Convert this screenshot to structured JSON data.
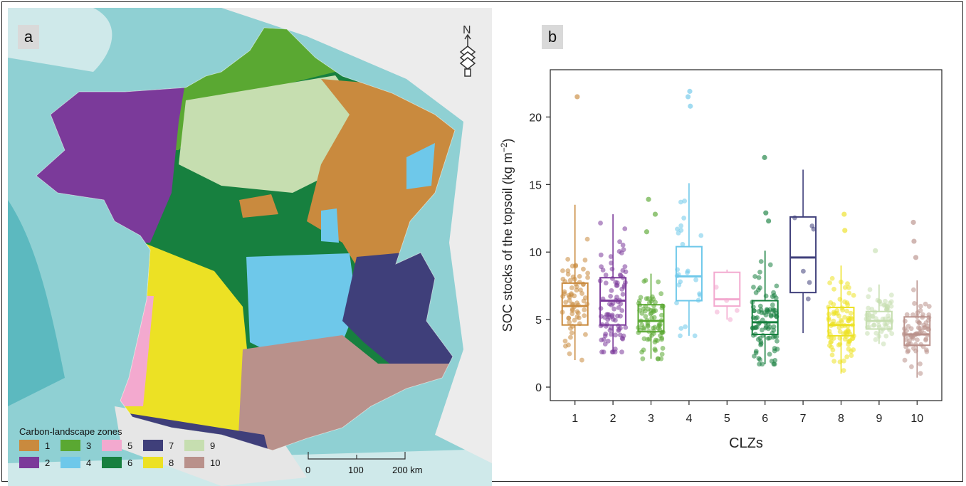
{
  "panel_a": {
    "tag": "a",
    "legend_title": "Carbon-landscape zones",
    "zones": [
      {
        "id": "1",
        "color": "#c98a3e"
      },
      {
        "id": "2",
        "color": "#7b3a9a"
      },
      {
        "id": "3",
        "color": "#5aa832"
      },
      {
        "id": "4",
        "color": "#6ec8ea"
      },
      {
        "id": "5",
        "color": "#f3a9cf"
      },
      {
        "id": "6",
        "color": "#17803f"
      },
      {
        "id": "7",
        "color": "#3f3f7a"
      },
      {
        "id": "8",
        "color": "#ece124"
      },
      {
        "id": "9",
        "color": "#c6deb0"
      },
      {
        "id": "10",
        "color": "#b9918b"
      }
    ],
    "scale_labels": [
      "0",
      "100",
      "200 km"
    ],
    "north_label": "N"
  },
  "panel_b": {
    "tag": "b"
  },
  "chart_data": {
    "type": "box",
    "xlabel": "CLZs",
    "ylabel": "SOC stocks of the topsoil (kg m",
    "ylabel_sup": "−2",
    "ylabel_close": ")",
    "ylim": [
      -1,
      23.5
    ],
    "yticks": [
      0,
      5,
      10,
      15,
      20
    ],
    "grid": false,
    "categories": [
      "1",
      "2",
      "3",
      "4",
      "5",
      "6",
      "7",
      "8",
      "9",
      "10"
    ],
    "colors": [
      "#c98a3e",
      "#7b3a9a",
      "#5aa832",
      "#6ec8ea",
      "#f3a9cf",
      "#17803f",
      "#3f3f7a",
      "#ece124",
      "#c6deb0",
      "#b9918b"
    ],
    "boxes": [
      {
        "q1": 4.6,
        "median": 6.0,
        "q3": 7.7,
        "whisker_low": 2.0,
        "whisker_high": 13.5,
        "outliers": [
          21.5
        ],
        "n_points": 70
      },
      {
        "q1": 4.6,
        "median": 6.4,
        "q3": 8.1,
        "whisker_low": 2.6,
        "whisker_high": 12.8,
        "outliers": [],
        "n_points": 90
      },
      {
        "q1": 4.1,
        "median": 4.9,
        "q3": 6.1,
        "whisker_low": 2.1,
        "whisker_high": 8.4,
        "outliers": [
          11.5,
          12.8,
          13.9
        ],
        "n_points": 80
      },
      {
        "q1": 6.4,
        "median": 8.2,
        "q3": 10.4,
        "whisker_low": 3.8,
        "whisker_high": 15.1,
        "outliers": [
          20.8,
          21.5,
          21.9
        ],
        "n_points": 25
      },
      {
        "q1": 6.0,
        "median": 6.5,
        "q3": 8.5,
        "whisker_low": 5.0,
        "whisker_high": 8.7,
        "outliers": [],
        "n_points": 5
      },
      {
        "q1": 3.9,
        "median": 4.8,
        "q3": 6.4,
        "whisker_low": 1.7,
        "whisker_high": 10.1,
        "outliers": [
          12.3,
          12.9,
          17.0
        ],
        "n_points": 90
      },
      {
        "q1": 7.0,
        "median": 9.6,
        "q3": 12.6,
        "whisker_low": 4.0,
        "whisker_high": 16.1,
        "outliers": [],
        "n_points": 6
      },
      {
        "q1": 3.8,
        "median": 4.6,
        "q3": 5.9,
        "whisker_low": 1.0,
        "whisker_high": 9.0,
        "outliers": [
          11.6,
          12.8
        ],
        "n_points": 90
      },
      {
        "q1": 4.3,
        "median": 4.9,
        "q3": 5.6,
        "whisker_low": 3.2,
        "whisker_high": 7.6,
        "outliers": [
          10.1
        ],
        "n_points": 60
      },
      {
        "q1": 3.1,
        "median": 3.9,
        "q3": 5.2,
        "whisker_low": 0.7,
        "whisker_high": 7.9,
        "outliers": [
          9.6,
          10.8,
          12.2
        ],
        "n_points": 70
      }
    ]
  }
}
